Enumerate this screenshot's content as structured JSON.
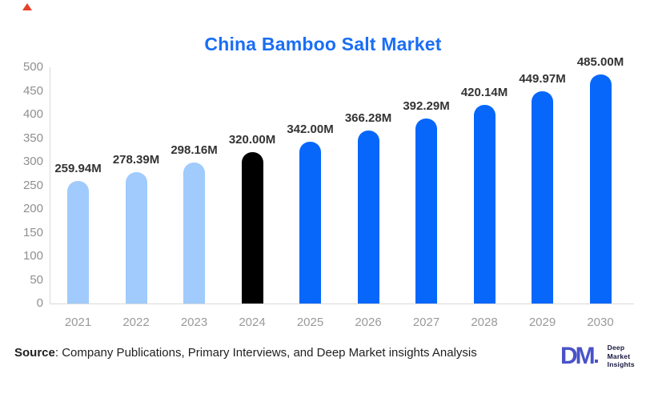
{
  "page": {
    "title": "China Bamboo Salt Market"
  },
  "colors": {
    "title": "#1a6ef5",
    "axis_text": "#8f8f8f",
    "x_label_text": "#9a9a9a",
    "value_label_text": "#333333",
    "axis_line": "#d9d9d9",
    "bar_historical": "#a0cbfc",
    "bar_base_year": "#000000",
    "bar_forecast": "#0667fa",
    "corner_marker": "#e8402a",
    "logo_mark": "#4a52c8",
    "logo_text": "#15153d"
  },
  "chart_data": {
    "type": "bar",
    "title": "China Bamboo Salt Market",
    "categories": [
      "2021",
      "2022",
      "2023",
      "2024",
      "2025",
      "2026",
      "2027",
      "2028",
      "2029",
      "2030"
    ],
    "values": [
      259.94,
      278.39,
      298.16,
      320.0,
      342.0,
      366.28,
      392.29,
      420.14,
      449.97,
      485.0
    ],
    "value_labels": [
      "259.94M",
      "278.39M",
      "298.16M",
      "320.00M",
      "342.00M",
      "366.28M",
      "392.29M",
      "420.14M",
      "449.97M",
      "485.00M"
    ],
    "bar_colors": [
      "#a0cbfc",
      "#a0cbfc",
      "#a0cbfc",
      "#000000",
      "#0667fa",
      "#0667fa",
      "#0667fa",
      "#0667fa",
      "#0667fa",
      "#0667fa"
    ],
    "unit": "M",
    "xlabel": "",
    "ylabel": "",
    "ylim": [
      0,
      500
    ],
    "yticks": [
      500,
      450,
      400,
      350,
      300,
      250,
      200,
      150,
      100,
      50,
      0
    ],
    "grid": false,
    "legend": false
  },
  "source": {
    "label": "Source",
    "text": ": Company Publications, Primary Interviews, and Deep Market insights Analysis"
  },
  "logo": {
    "mark": "DM",
    "lines": [
      "Deep",
      "Market",
      "Insights"
    ]
  }
}
